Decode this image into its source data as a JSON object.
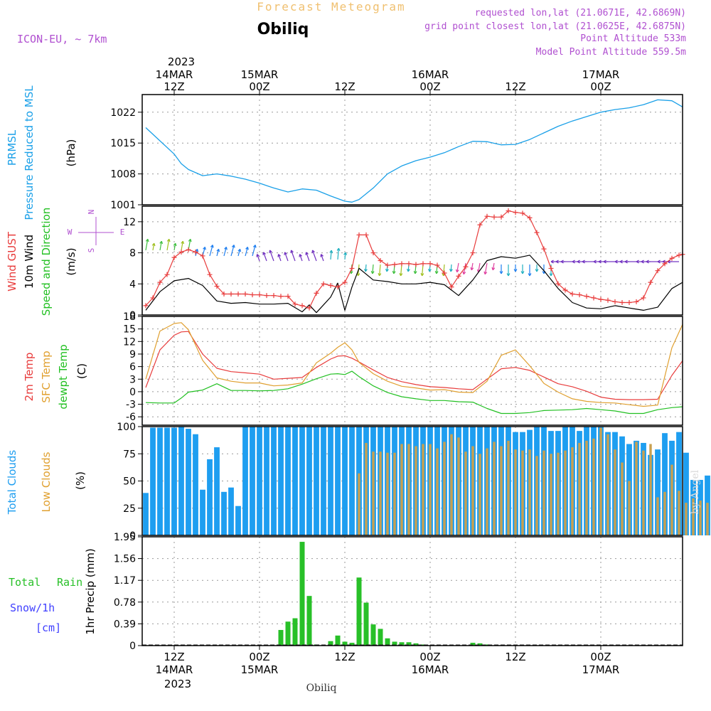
{
  "header": {
    "title": "Forecast Meteogram",
    "location": "Obiliq",
    "model": "ICON-EU, ~ 7km",
    "requested": "requested lon,lat (21.0671E, 42.6869N)",
    "grid_point": "grid point closest lon,lat (21.0625E, 42.6875N)",
    "point_altitude": "Point Altitude 533m",
    "model_altitude": "Model Point Altitude 559.5m",
    "footer_location": "Obiliq",
    "signature": "by Angel"
  },
  "time_axis": {
    "year": "2023",
    "ticks": [
      {
        "time": 12,
        "hour": "12Z",
        "date": "14MAR"
      },
      {
        "time": 24,
        "hour": "00Z",
        "date": "15MAR"
      },
      {
        "time": 36,
        "hour": "12Z",
        "date": ""
      },
      {
        "time": 48,
        "hour": "00Z",
        "date": "16MAR"
      },
      {
        "time": 60,
        "hour": "12Z",
        "date": ""
      },
      {
        "time": 72,
        "hour": "00Z",
        "date": "17MAR"
      }
    ],
    "range": [
      7.5,
      83.5
    ],
    "unit": "hours since 2023-03-14 00Z"
  },
  "panel_labels": {
    "pressure": [
      "PRMSL",
      "Pressure Reduced to MSL",
      "(hPa)"
    ],
    "wind": [
      "Wind GUST",
      "10m Wind",
      "Speed and Direction",
      "(m/s)"
    ],
    "compass": [
      "N",
      "S",
      "W",
      "E"
    ],
    "temp": [
      "2m Temp",
      "SFC Temp",
      "dewpt Temp",
      "(C)"
    ],
    "clouds": [
      "Total Clouds",
      "Low Clouds",
      "(%)"
    ],
    "precip": [
      "Total",
      "Rain",
      "Snow/1h",
      "[cm]",
      "1hr Precip (mm)"
    ]
  },
  "colors": {
    "pressure": "#1aa0e8",
    "gust": "#e83c3c",
    "wind": "#000000",
    "temp2m": "#e83c3c",
    "sfc": "#e0a030",
    "dewpt": "#22c022",
    "total_clouds": "#1e9ef0",
    "low_clouds": "#c8a050",
    "rain": "#28c028",
    "snow": "#4040ff",
    "model_text": "#b050d0",
    "title_text": "#f0c070"
  },
  "chart_data": [
    {
      "type": "line",
      "panel": "pressure",
      "ylabel": "(hPa)",
      "ylim": [
        1001,
        1026
      ],
      "yticks": [
        1001,
        1008,
        1015,
        1022
      ],
      "series": [
        {
          "name": "PRMSL",
          "x": [
            8,
            10,
            12,
            13,
            14,
            16,
            18,
            20,
            22,
            24,
            26,
            28,
            30,
            32,
            34,
            36,
            37,
            38,
            40,
            42,
            44,
            46,
            48,
            50,
            52,
            54,
            56,
            58,
            60,
            62,
            64,
            66,
            68,
            70,
            72,
            74,
            76,
            78,
            80,
            82,
            83.5
          ],
          "y": [
            1018.5,
            1015.5,
            1012.5,
            1010.3,
            1009,
            1007.6,
            1008,
            1007.5,
            1006.8,
            1005.9,
            1004.8,
            1003.9,
            1004.6,
            1004.3,
            1003,
            1001.8,
            1001.6,
            1002.2,
            1004.8,
            1008,
            1009.8,
            1011,
            1011.8,
            1012.8,
            1014.2,
            1015.4,
            1015.3,
            1014.6,
            1014.7,
            1015.8,
            1017.3,
            1018.8,
            1020,
            1021,
            1022,
            1022.6,
            1023,
            1023.7,
            1024.8,
            1024.6,
            1023.2
          ]
        }
      ]
    },
    {
      "type": "line",
      "panel": "wind",
      "ylabel": "(m/s)",
      "ylim": [
        0,
        14
      ],
      "yticks": [
        0,
        4,
        8,
        12
      ],
      "series": [
        {
          "name": "Wind GUST",
          "x": [
            8,
            9,
            10,
            11,
            12,
            13,
            14,
            15,
            16,
            17,
            18,
            19,
            20,
            21,
            22,
            23,
            24,
            25,
            26,
            27,
            28,
            29,
            30,
            31,
            32,
            33,
            34,
            35,
            36,
            37,
            38,
            39,
            40,
            41,
            42,
            43,
            44,
            45,
            46,
            47,
            48,
            49,
            50,
            51,
            52,
            53,
            54,
            55,
            56,
            57,
            58,
            59,
            60,
            61,
            62,
            63,
            64,
            65,
            66,
            67,
            68,
            69,
            70,
            71,
            72,
            73,
            74,
            75,
            76,
            77,
            78,
            79,
            80,
            81,
            82,
            83,
            83.5
          ],
          "y": [
            1.2,
            2.2,
            4.2,
            5.2,
            7.4,
            8.1,
            8.4,
            8.1,
            7.6,
            5.2,
            3.7,
            2.7,
            2.7,
            2.7,
            2.7,
            2.6,
            2.6,
            2.5,
            2.5,
            2.4,
            2.4,
            1.4,
            1.2,
            0.9,
            2.8,
            4,
            3.8,
            3.6,
            4.2,
            6,
            10.3,
            10.3,
            8,
            7,
            6.4,
            6.5,
            6.6,
            6.6,
            6.5,
            6.6,
            6.6,
            6.4,
            5.4,
            3.6,
            5,
            6.2,
            8,
            11.6,
            12.7,
            12.6,
            12.6,
            13.4,
            13.2,
            13.1,
            12.5,
            10.6,
            8.5,
            6,
            4,
            3.2,
            2.7,
            2.6,
            2.4,
            2.2,
            2,
            1.9,
            1.7,
            1.6,
            1.6,
            1.7,
            2.2,
            4.2,
            5.7,
            6.6,
            7.3,
            7.7,
            7.8
          ]
        },
        {
          "name": "10m Wind",
          "x": [
            8,
            10,
            12,
            14,
            16,
            18,
            20,
            22,
            24,
            26,
            28,
            30,
            31,
            32,
            33,
            34,
            35,
            36,
            37,
            38,
            40,
            42,
            44,
            46,
            48,
            50,
            52,
            54,
            56,
            58,
            60,
            62,
            64,
            66,
            68,
            70,
            72,
            74,
            76,
            78,
            80,
            82,
            83.5
          ],
          "y": [
            0.6,
            3,
            4.4,
            4.7,
            3.8,
            1.8,
            1.5,
            1.6,
            1.4,
            1.4,
            1.5,
            0.4,
            1.3,
            0.3,
            1.3,
            2.3,
            4.1,
            0.6,
            3.6,
            6,
            4.5,
            4.3,
            4,
            4,
            4.2,
            3.9,
            2.5,
            4.5,
            7,
            7.5,
            7.3,
            7.7,
            5.7,
            3.4,
            1.6,
            0.9,
            0.8,
            1.2,
            0.9,
            0.6,
            1,
            3.4,
            4.2
          ]
        }
      ]
    },
    {
      "type": "line",
      "panel": "temperature",
      "ylabel": "(C)",
      "ylim": [
        -8,
        18
      ],
      "yticks": [
        -6,
        -3,
        0,
        3,
        6,
        9,
        12,
        15,
        18
      ],
      "series": [
        {
          "name": "2m Temp",
          "x": [
            8,
            10,
            12,
            13,
            14,
            16,
            18,
            20,
            22,
            24,
            26,
            28,
            30,
            32,
            34,
            35,
            36,
            37,
            38,
            40,
            42,
            44,
            46,
            48,
            50,
            52,
            54,
            56,
            58,
            60,
            62,
            64,
            66,
            68,
            70,
            72,
            74,
            76,
            78,
            80,
            82,
            83.5
          ],
          "y": [
            1,
            10,
            13.5,
            14.3,
            14.4,
            9,
            5.6,
            4.8,
            4.5,
            4.2,
            3,
            3.2,
            3.4,
            5.8,
            7.8,
            8.5,
            8.6,
            8,
            7.1,
            5.2,
            3.4,
            2.4,
            1.7,
            1.2,
            1,
            0.7,
            0.5,
            3,
            5.5,
            5.8,
            5.1,
            3.5,
            1.9,
            1.2,
            0.1,
            -1.3,
            -1.8,
            -1.9,
            -1.9,
            -1.8,
            3.9,
            7.4
          ]
        },
        {
          "name": "SFC Temp",
          "x": [
            8,
            10,
            12,
            13,
            14,
            16,
            18,
            20,
            22,
            24,
            26,
            28,
            30,
            32,
            34,
            35,
            36,
            37,
            38,
            40,
            42,
            44,
            46,
            48,
            50,
            52,
            54,
            56,
            58,
            60,
            62,
            64,
            66,
            68,
            70,
            72,
            74,
            76,
            78,
            80,
            82,
            83.5
          ],
          "y": [
            3,
            14.5,
            16.3,
            16.5,
            14.8,
            7.5,
            3.3,
            2.5,
            2.1,
            2.1,
            1.4,
            1.6,
            2.1,
            6.9,
            9.2,
            10.6,
            11.7,
            10,
            7,
            4.3,
            2.5,
            1.3,
            0.9,
            0.4,
            0.5,
            -0.1,
            -0.2,
            2.5,
            8.7,
            10,
            6.2,
            2,
            -0.1,
            -1.7,
            -2.3,
            -2.6,
            -2.7,
            -3.1,
            -3.5,
            -3.2,
            10.5,
            16.1
          ]
        },
        {
          "name": "dewpt Temp",
          "x": [
            8,
            10,
            12,
            13,
            14,
            16,
            18,
            20,
            22,
            24,
            26,
            28,
            30,
            32,
            34,
            35,
            36,
            37,
            38,
            40,
            42,
            44,
            46,
            48,
            50,
            52,
            54,
            56,
            58,
            60,
            62,
            64,
            66,
            68,
            70,
            72,
            74,
            76,
            78,
            80,
            82,
            83.5
          ],
          "y": [
            -2.6,
            -2.7,
            -2.7,
            -1.5,
            -0.1,
            0.4,
            1.9,
            0.3,
            0.3,
            0.2,
            0.3,
            0.7,
            1.8,
            3.1,
            4.2,
            4.3,
            4.1,
            4.9,
            3.6,
            1.4,
            -0.2,
            -1.2,
            -1.7,
            -2.1,
            -2.1,
            -2.4,
            -2.5,
            -4,
            -5.2,
            -5.2,
            -5,
            -4.5,
            -4.4,
            -4.3,
            -4,
            -4.3,
            -4.6,
            -5.2,
            -5.2,
            -4.3,
            -3.8,
            -3.6
          ]
        }
      ]
    },
    {
      "type": "bar",
      "panel": "clouds",
      "ylabel": "(%)",
      "ylim": [
        0,
        100
      ],
      "yticks": [
        0,
        25,
        50,
        75,
        100
      ],
      "x_start": 7.5,
      "x_step": 1,
      "series": [
        {
          "name": "Total Clouds",
          "values": [
            39,
            99,
            99,
            99,
            99,
            100,
            98,
            93,
            42,
            70,
            81,
            40,
            44,
            27,
            100,
            100,
            100,
            100,
            100,
            100,
            100,
            100,
            100,
            100,
            100,
            100,
            100,
            100,
            100,
            100,
            100,
            100,
            100,
            100,
            100,
            100,
            100,
            100,
            100,
            100,
            100,
            100,
            100,
            100,
            100,
            100,
            100,
            100,
            100,
            100,
            100,
            100,
            95,
            95,
            97,
            100,
            100,
            96,
            96,
            100,
            100,
            96,
            100,
            100,
            100,
            95,
            95,
            91,
            84,
            87,
            85,
            74,
            79,
            94,
            87,
            95,
            76,
            51,
            51,
            55,
            32,
            24,
            0,
            0,
            0,
            0,
            9,
            16,
            20
          ]
        },
        {
          "name": "Low Clouds",
          "values": [
            0,
            0,
            0,
            0,
            0,
            0,
            0,
            0,
            0,
            0,
            0,
            0,
            0,
            0,
            0,
            0,
            0,
            0,
            0,
            0,
            0,
            0,
            0,
            0,
            0,
            0,
            0,
            0,
            0,
            0,
            57,
            85,
            77,
            77,
            76,
            76,
            84,
            84,
            82,
            84,
            84,
            80,
            86,
            93,
            90,
            77,
            82,
            75,
            80,
            86,
            82,
            87,
            79,
            78,
            79,
            73,
            78,
            75,
            76,
            78,
            81,
            85,
            87,
            89,
            99,
            93,
            79,
            67,
            50,
            86,
            78,
            84,
            35,
            40,
            65,
            41,
            30,
            34,
            32,
            30,
            29,
            36,
            28,
            24,
            0,
            0,
            0,
            0,
            15,
            19,
            19
          ]
        }
      ]
    },
    {
      "type": "bar",
      "panel": "precipitation",
      "ylabel": "1hr Precip (mm)",
      "ylim": [
        0,
        1.95
      ],
      "yticks": [
        0,
        0.39,
        0.78,
        1.17,
        1.56,
        1.95
      ],
      "series": [
        {
          "name": "Total Rain",
          "x": [
            27,
            28,
            29,
            30,
            31,
            32,
            34,
            35,
            36,
            37,
            38,
            39,
            40,
            41,
            42,
            43,
            44,
            45,
            46,
            47,
            54,
            55,
            56
          ],
          "values": [
            0.28,
            0.43,
            0.49,
            1.86,
            0.89,
            0.02,
            0.08,
            0.18,
            0.07,
            0.05,
            1.22,
            0.77,
            0.38,
            0.3,
            0.13,
            0.07,
            0.06,
            0.06,
            0.04,
            0.02,
            0.05,
            0.04,
            0.02
          ]
        },
        {
          "name": "Snow/1h",
          "x": [],
          "values": []
        }
      ]
    }
  ]
}
